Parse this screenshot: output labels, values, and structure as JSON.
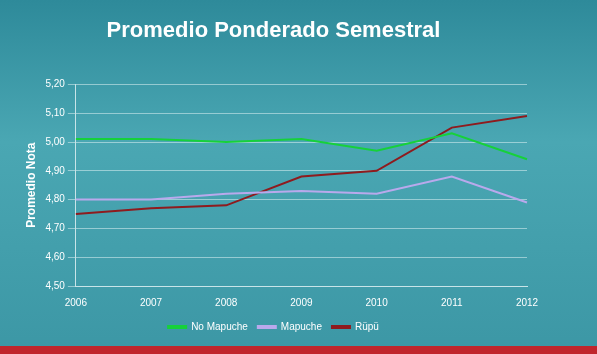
{
  "chart_data": {
    "type": "line",
    "title": "Promedio Ponderado Semestral",
    "y_label": "Promedio Nota",
    "categories": [
      "2006",
      "2007",
      "2008",
      "2009",
      "2010",
      "2011",
      "2012"
    ],
    "series": [
      {
        "name": "No Mapuche",
        "color": "#16d13a",
        "values": [
          5.01,
          5.01,
          5.0,
          5.01,
          4.97,
          5.03,
          4.94
        ]
      },
      {
        "name": "Mapuche",
        "color": "#b9a9ec",
        "values": [
          4.8,
          4.8,
          4.82,
          4.83,
          4.82,
          4.88,
          4.79
        ]
      },
      {
        "name": "Rüpü",
        "color": "#8e1b1e",
        "values": [
          4.75,
          4.77,
          4.78,
          4.88,
          4.9,
          5.05,
          5.09
        ]
      }
    ],
    "ylim": [
      4.5,
      5.2
    ],
    "yticks": [
      {
        "value": 4.5,
        "label": "4,50"
      },
      {
        "value": 4.6,
        "label": "4,60"
      },
      {
        "value": 4.7,
        "label": "4,70"
      },
      {
        "value": 4.8,
        "label": "4,80"
      },
      {
        "value": 4.9,
        "label": "4,90"
      },
      {
        "value": 5.0,
        "label": "5,00"
      },
      {
        "value": 5.1,
        "label": "5,10"
      },
      {
        "value": 5.2,
        "label": "5,20"
      }
    ],
    "grid": true,
    "legend": "bottom"
  }
}
